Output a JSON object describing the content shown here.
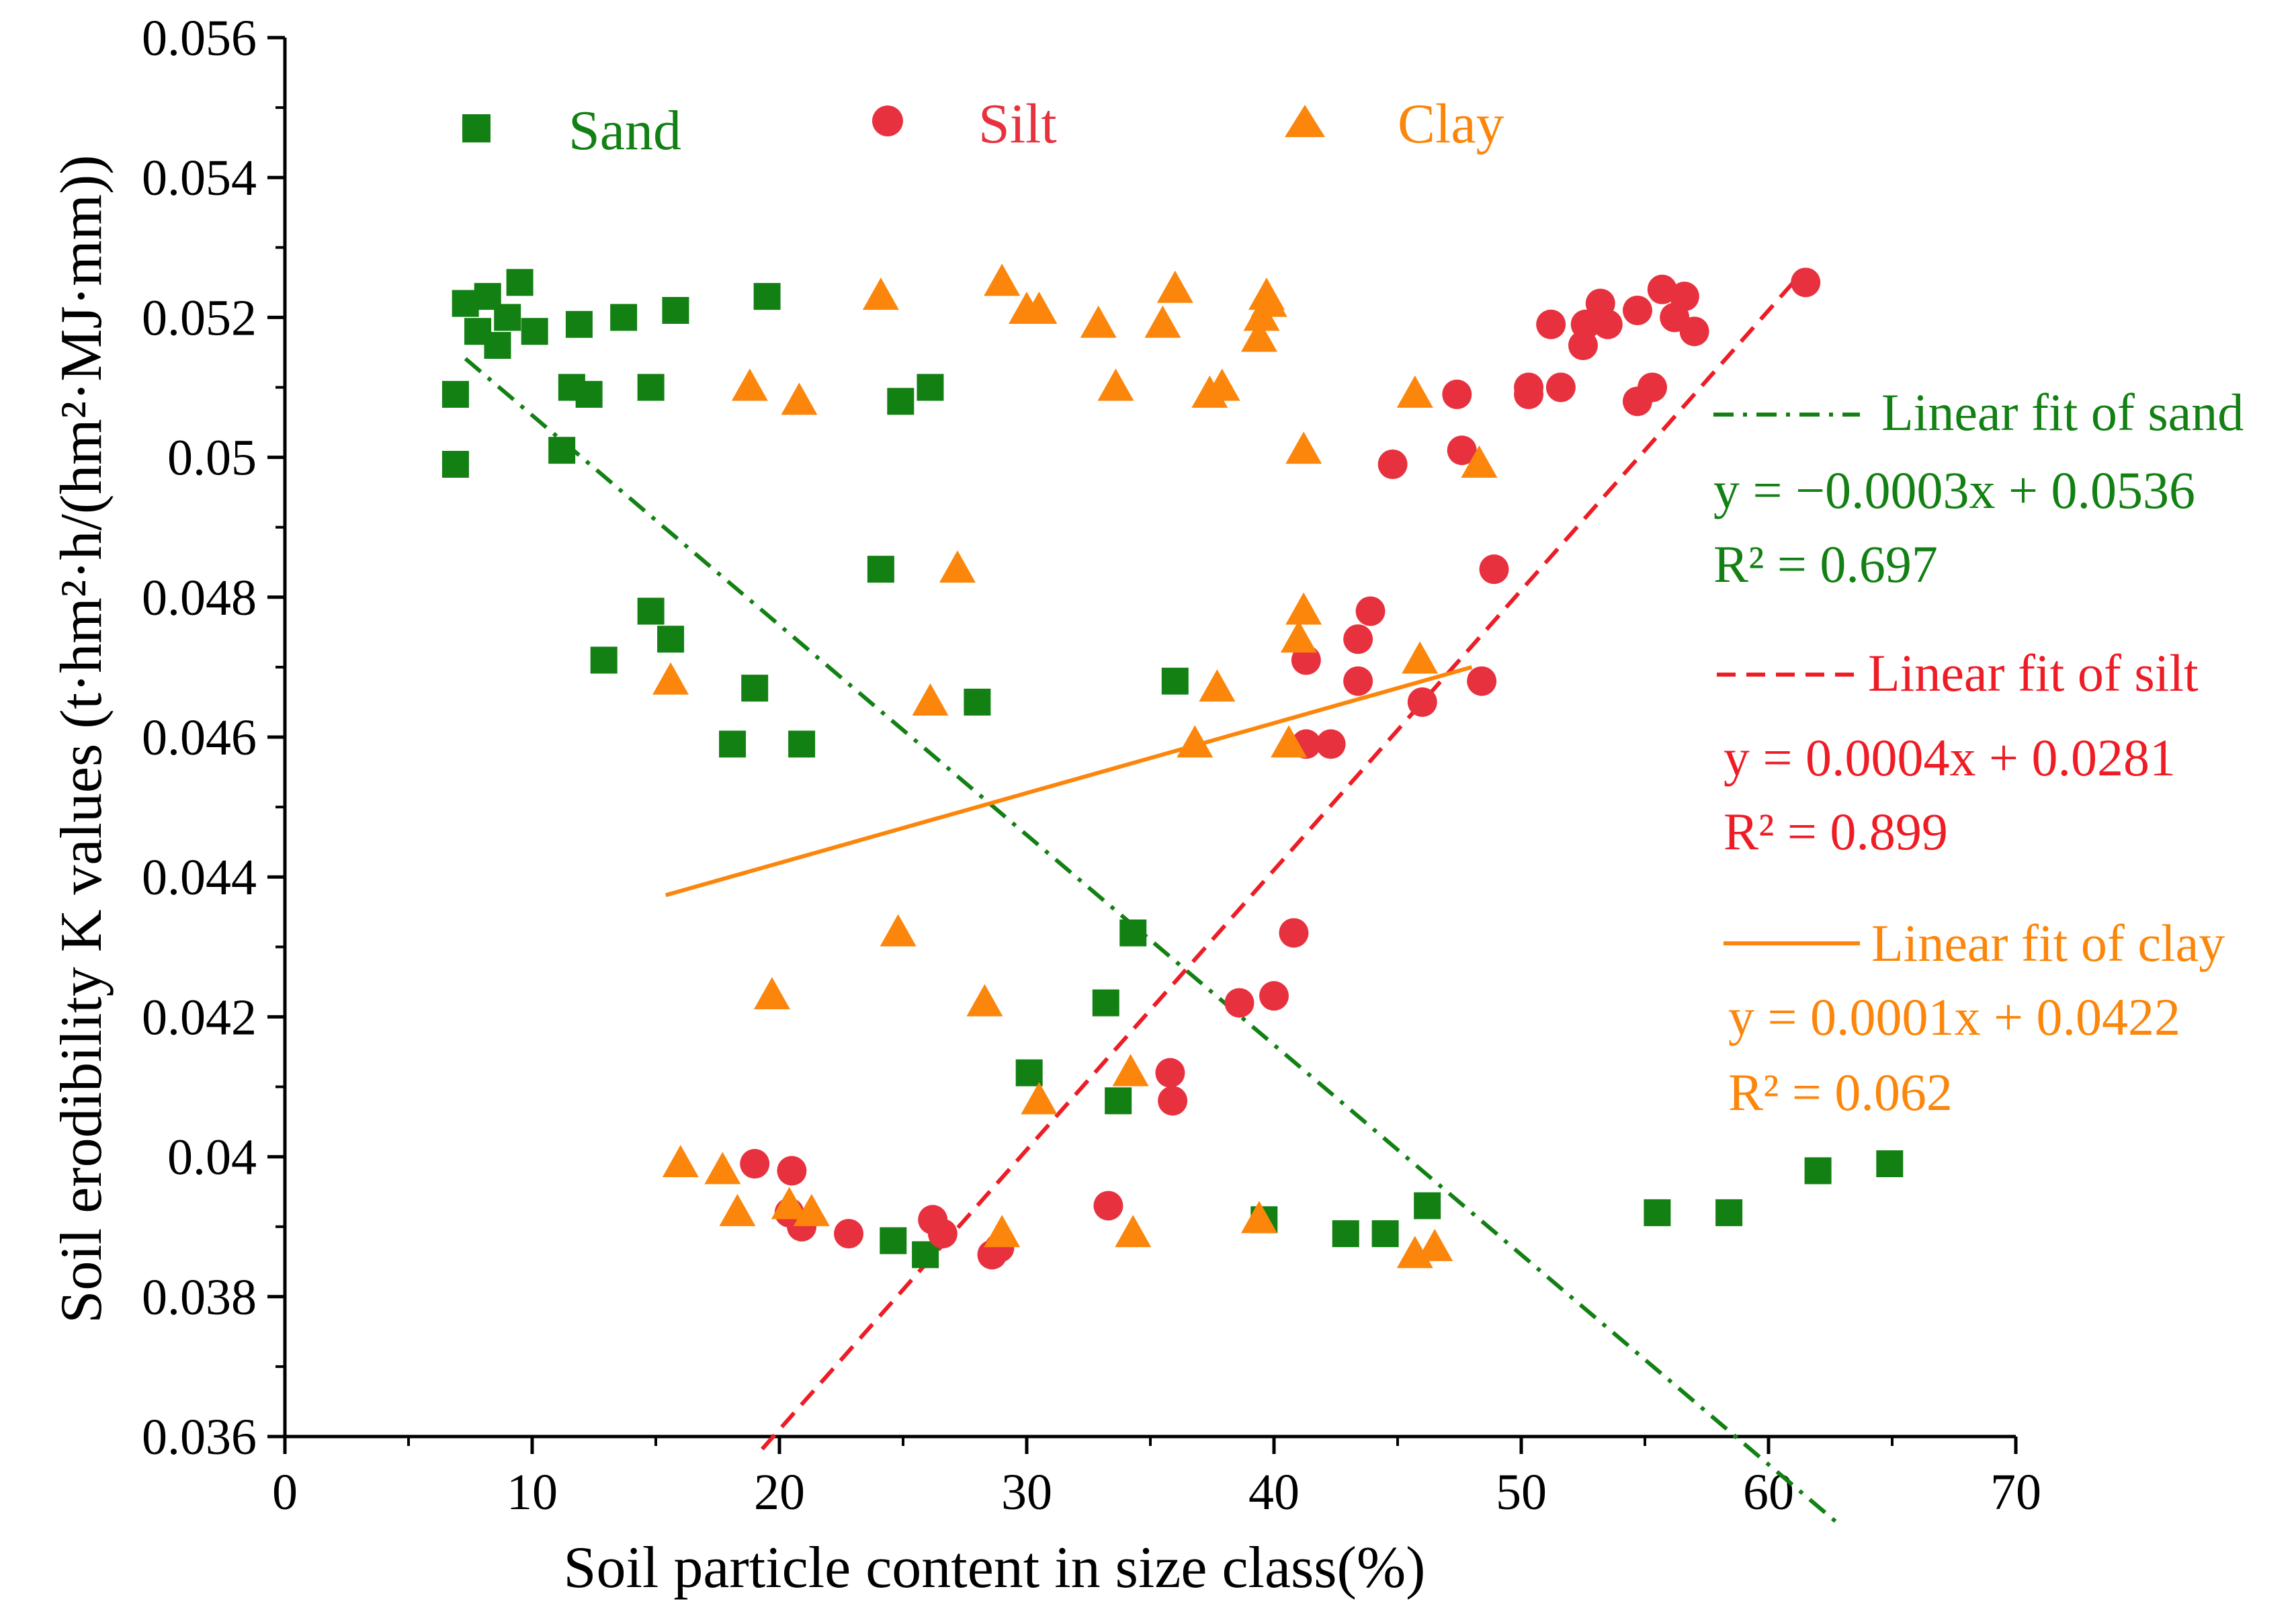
{
  "chart_data": {
    "type": "scatter",
    "title": "",
    "xlabel": "Soil particle content in size class(%)",
    "ylabel": "Soil erodibility K values (t·hm²·h/(hm²·MJ·mm))",
    "xlim": [
      0,
      70
    ],
    "ylim": [
      0.036,
      0.056
    ],
    "x_ticks": [
      0,
      10,
      20,
      30,
      40,
      50,
      60,
      70
    ],
    "y_ticks": [
      0.036,
      0.038,
      0.04,
      0.042,
      0.044,
      0.046,
      0.048,
      0.05,
      0.052,
      0.054,
      0.056
    ],
    "x_tick_labels": [
      "0",
      "10",
      "20",
      "30",
      "40",
      "50",
      "60",
      "70"
    ],
    "y_tick_labels": [
      "0.036",
      "0.038",
      "0.04",
      "0.042",
      "0.044",
      "0.046",
      "0.048",
      "0.05",
      "0.052",
      "0.054",
      "0.056"
    ],
    "grid": false,
    "legend_position": "top",
    "series": [
      {
        "name": "Sand",
        "marker": "square",
        "color": "#138013",
        "points": [
          [
            7.3,
            0.0522
          ],
          [
            7.8,
            0.0518
          ],
          [
            8.2,
            0.0523
          ],
          [
            8.6,
            0.0516
          ],
          [
            9.0,
            0.052
          ],
          [
            9.5,
            0.0525
          ],
          [
            10.1,
            0.0518
          ],
          [
            11.9,
            0.0519
          ],
          [
            13.7,
            0.052
          ],
          [
            15.8,
            0.0521
          ],
          [
            19.5,
            0.0523
          ],
          [
            6.9,
            0.0509
          ],
          [
            11.6,
            0.051
          ],
          [
            12.3,
            0.0509
          ],
          [
            14.8,
            0.051
          ],
          [
            24.9,
            0.0508
          ],
          [
            26.1,
            0.051
          ],
          [
            6.9,
            0.0499
          ],
          [
            11.2,
            0.0501
          ],
          [
            24.1,
            0.0484
          ],
          [
            14.8,
            0.0478
          ],
          [
            15.6,
            0.0474
          ],
          [
            12.9,
            0.0471
          ],
          [
            19.0,
            0.0467
          ],
          [
            36.0,
            0.0468
          ],
          [
            28.0,
            0.0465
          ],
          [
            18.1,
            0.0459
          ],
          [
            20.9,
            0.0459
          ],
          [
            34.3,
            0.0432
          ],
          [
            33.2,
            0.0422
          ],
          [
            30.1,
            0.0412
          ],
          [
            33.7,
            0.0408
          ],
          [
            24.6,
            0.0388
          ],
          [
            25.9,
            0.0386
          ],
          [
            39.6,
            0.0391
          ],
          [
            42.9,
            0.0389
          ],
          [
            44.5,
            0.0389
          ],
          [
            46.2,
            0.0393
          ],
          [
            55.5,
            0.0392
          ],
          [
            58.4,
            0.0392
          ],
          [
            62.0,
            0.0398
          ],
          [
            64.9,
            0.0399
          ]
        ]
      },
      {
        "name": "Silt",
        "marker": "circle",
        "color": "#e8313e",
        "points": [
          [
            61.5,
            0.0525
          ],
          [
            55.7,
            0.0524
          ],
          [
            56.6,
            0.0523
          ],
          [
            53.2,
            0.0522
          ],
          [
            54.7,
            0.0521
          ],
          [
            51.2,
            0.0519
          ],
          [
            52.6,
            0.0519
          ],
          [
            53.5,
            0.0519
          ],
          [
            56.2,
            0.052
          ],
          [
            57.0,
            0.0518
          ],
          [
            52.5,
            0.0516
          ],
          [
            47.4,
            0.0509
          ],
          [
            50.3,
            0.0509
          ],
          [
            50.3,
            0.051
          ],
          [
            51.6,
            0.051
          ],
          [
            54.7,
            0.0508
          ],
          [
            55.3,
            0.051
          ],
          [
            44.8,
            0.0499
          ],
          [
            47.6,
            0.0501
          ],
          [
            48.9,
            0.0484
          ],
          [
            43.9,
            0.0478
          ],
          [
            43.4,
            0.0474
          ],
          [
            41.3,
            0.0471
          ],
          [
            43.4,
            0.0468
          ],
          [
            48.4,
            0.0468
          ],
          [
            46.0,
            0.0465
          ],
          [
            41.3,
            0.0459
          ],
          [
            42.3,
            0.0459
          ],
          [
            40.8,
            0.0432
          ],
          [
            38.6,
            0.0422
          ],
          [
            40.0,
            0.0423
          ],
          [
            35.8,
            0.0412
          ],
          [
            35.9,
            0.0408
          ],
          [
            19.0,
            0.0399
          ],
          [
            20.5,
            0.0398
          ],
          [
            20.4,
            0.0392
          ],
          [
            20.9,
            0.039
          ],
          [
            22.8,
            0.0389
          ],
          [
            26.2,
            0.0391
          ],
          [
            26.6,
            0.0389
          ],
          [
            33.3,
            0.0393
          ],
          [
            28.6,
            0.0386
          ],
          [
            28.9,
            0.0387
          ]
        ]
      },
      {
        "name": "Clay",
        "marker": "triangle",
        "color": "#fb860b",
        "points": [
          [
            24.1,
            0.0523
          ],
          [
            29.0,
            0.0525
          ],
          [
            30.0,
            0.0521
          ],
          [
            30.5,
            0.0521
          ],
          [
            32.9,
            0.0519
          ],
          [
            35.5,
            0.0519
          ],
          [
            36.0,
            0.0524
          ],
          [
            39.4,
            0.0517
          ],
          [
            39.5,
            0.052
          ],
          [
            39.7,
            0.0523
          ],
          [
            39.8,
            0.0522
          ],
          [
            18.8,
            0.051
          ],
          [
            20.8,
            0.0508
          ],
          [
            33.6,
            0.051
          ],
          [
            37.4,
            0.0509
          ],
          [
            37.9,
            0.051
          ],
          [
            45.7,
            0.0509
          ],
          [
            41.2,
            0.0501
          ],
          [
            48.3,
            0.0499
          ],
          [
            27.2,
            0.0484
          ],
          [
            41.2,
            0.0478
          ],
          [
            41.0,
            0.0474
          ],
          [
            15.6,
            0.0468
          ],
          [
            26.1,
            0.0465
          ],
          [
            45.9,
            0.0471
          ],
          [
            37.7,
            0.0467
          ],
          [
            36.8,
            0.0459
          ],
          [
            40.6,
            0.0459
          ],
          [
            24.8,
            0.0432
          ],
          [
            19.7,
            0.0423
          ],
          [
            28.3,
            0.0422
          ],
          [
            34.2,
            0.0412
          ],
          [
            30.5,
            0.0408
          ],
          [
            16.0,
            0.0399
          ],
          [
            17.7,
            0.0398
          ],
          [
            18.3,
            0.0392
          ],
          [
            20.4,
            0.0393
          ],
          [
            21.3,
            0.0392
          ],
          [
            29.0,
            0.0389
          ],
          [
            34.3,
            0.0389
          ],
          [
            39.4,
            0.0391
          ],
          [
            45.7,
            0.0386
          ],
          [
            46.5,
            0.0387
          ]
        ]
      }
    ],
    "fits": [
      {
        "name": "Linear fit of sand",
        "equation": "y = −0.0003x + 0.0536",
        "r2": "R² = 0.697",
        "slope": -0.0003,
        "intercept": 0.0536,
        "x_range": [
          7.3,
          62.9
        ],
        "color": "#138013",
        "style": "dash-dot"
      },
      {
        "name": "Linear fit of silt",
        "equation": "y = 0.0004x + 0.0281",
        "r2": "R² = 0.899",
        "slope": 0.0004,
        "intercept": 0.0281,
        "x_range": [
          19.3,
          61.3
        ],
        "color": "#ee1c25",
        "style": "dash"
      },
      {
        "name": "Linear fit of clay",
        "equation": "y = 0.0001x + 0.0422",
        "r2": "R² = 0.062",
        "slope": 0.0001,
        "intercept": 0.0422,
        "x_range": [
          15.4,
          48.0
        ],
        "color": "#fb860b",
        "style": "solid"
      }
    ]
  }
}
